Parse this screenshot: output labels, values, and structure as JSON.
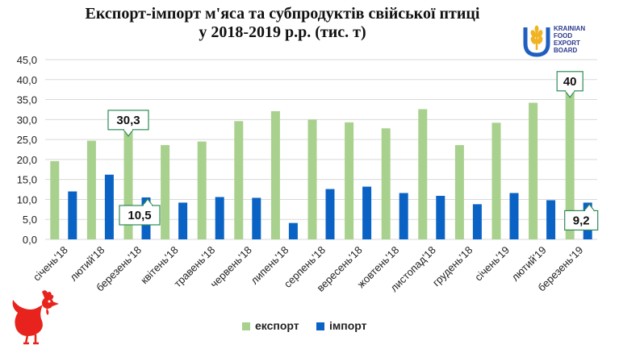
{
  "title": {
    "line1": "Експорт-імпорт м'яса та субпродуктів свійської птиці",
    "line2": "у 2018-2019 р.р. (тис. т)"
  },
  "logo": {
    "lines": [
      "KRAINIAN",
      "FOOD",
      "EXPORT",
      "BOARD"
    ],
    "icon": "wheat-u-logo-icon"
  },
  "decoration": {
    "icon": "rooster-icon",
    "color": "#e8231d"
  },
  "chart_data": {
    "type": "bar",
    "categories": [
      "січень'18",
      "лютий'18",
      "березень'18",
      "квітень'18",
      "травень'18",
      "червень'18",
      "липень'18",
      "серпень'18",
      "вересень'18",
      "жовтень'18",
      "листопад'18",
      "грудень'18",
      "січень'19",
      "лютий'19",
      "березень'19"
    ],
    "series": [
      {
        "name": "експорт",
        "color": "#a9d18e",
        "values": [
          19.6,
          24.7,
          30.3,
          23.6,
          24.5,
          29.6,
          32.1,
          30.0,
          29.3,
          27.8,
          32.6,
          23.6,
          29.2,
          34.2,
          40.0
        ]
      },
      {
        "name": "імпорт",
        "color": "#0a63c4",
        "values": [
          12.0,
          16.2,
          10.5,
          9.2,
          10.6,
          10.4,
          4.1,
          12.6,
          13.2,
          11.6,
          10.9,
          8.8,
          11.6,
          9.8,
          9.2
        ]
      }
    ],
    "yticks": [
      "0,0",
      "5,0",
      "10,0",
      "15,0",
      "20,0",
      "25,0",
      "30,0",
      "35,0",
      "40,0",
      "45,0"
    ],
    "ylim": [
      0,
      45
    ],
    "grid": true,
    "legend_position": "bottom",
    "callouts": [
      {
        "text": "30,3",
        "series": 0,
        "index": 2
      },
      {
        "text": "10,5",
        "series": 1,
        "index": 2
      },
      {
        "text": "40",
        "series": 0,
        "index": 14
      },
      {
        "text": "9,2",
        "series": 1,
        "index": 14
      }
    ]
  }
}
